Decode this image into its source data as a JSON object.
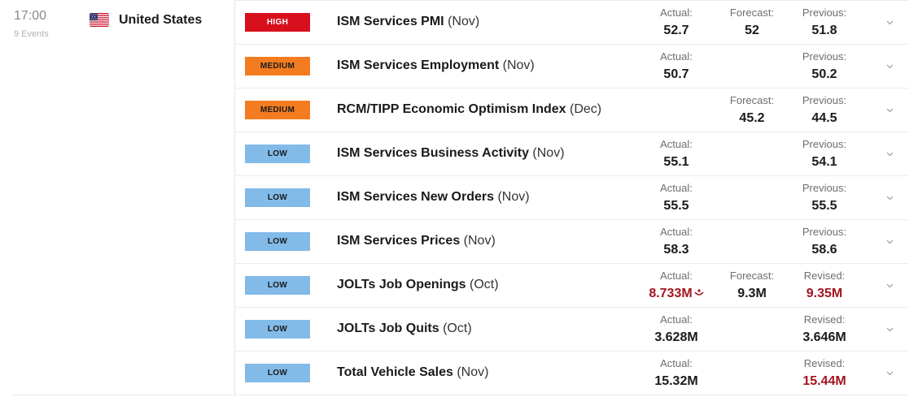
{
  "group": {
    "time": "17:00",
    "events_count": "9 Events",
    "country": "United States",
    "flag_icon": "us-flag-icon"
  },
  "colors": {
    "high": "#d8101e",
    "medium": "#f47c20",
    "low": "#82bae8",
    "miss_red": "#a31521"
  },
  "events": [
    {
      "importance": "HIGH",
      "name": "ISM Services PMI",
      "period": "(Nov)",
      "actual_label": "Actual:",
      "actual": "52.7",
      "forecast_label": "Forecast:",
      "forecast": "52",
      "previous_label": "Previous:",
      "previous": "51.8"
    },
    {
      "importance": "MEDIUM",
      "name": "ISM Services Employment",
      "period": "(Nov)",
      "actual_label": "Actual:",
      "actual": "50.7",
      "forecast_label": "",
      "forecast": "",
      "previous_label": "Previous:",
      "previous": "50.2"
    },
    {
      "importance": "MEDIUM",
      "name": "RCM/TIPP Economic Optimism Index",
      "period": "(Dec)",
      "actual_label": "",
      "actual": "",
      "forecast_label": "Forecast:",
      "forecast": "45.2",
      "previous_label": "Previous:",
      "previous": "44.5"
    },
    {
      "importance": "LOW",
      "name": "ISM Services Business Activity",
      "period": "(Nov)",
      "actual_label": "Actual:",
      "actual": "55.1",
      "forecast_label": "",
      "forecast": "",
      "previous_label": "Previous:",
      "previous": "54.1"
    },
    {
      "importance": "LOW",
      "name": "ISM Services New Orders",
      "period": "(Nov)",
      "actual_label": "Actual:",
      "actual": "55.5",
      "forecast_label": "",
      "forecast": "",
      "previous_label": "Previous:",
      "previous": "55.5"
    },
    {
      "importance": "LOW",
      "name": "ISM Services Prices",
      "period": "(Nov)",
      "actual_label": "Actual:",
      "actual": "58.3",
      "forecast_label": "",
      "forecast": "",
      "previous_label": "Previous:",
      "previous": "58.6"
    },
    {
      "importance": "LOW",
      "name": "JOLTs Job Openings",
      "period": "(Oct)",
      "actual_label": "Actual:",
      "actual": "8.733M",
      "actual_red": true,
      "actual_icon": "down-arrow-icon",
      "forecast_label": "Forecast:",
      "forecast": "9.3M",
      "previous_label": "Revised:",
      "previous": "9.35M",
      "previous_red": true
    },
    {
      "importance": "LOW",
      "name": "JOLTs Job Quits",
      "period": "(Oct)",
      "actual_label": "Actual:",
      "actual": "3.628M",
      "forecast_label": "",
      "forecast": "",
      "previous_label": "Revised:",
      "previous": "3.646M"
    },
    {
      "importance": "LOW",
      "name": "Total Vehicle Sales",
      "period": "(Nov)",
      "actual_label": "Actual:",
      "actual": "15.32M",
      "forecast_label": "",
      "forecast": "",
      "previous_label": "Revised:",
      "previous": "15.44M",
      "previous_red": true
    }
  ]
}
